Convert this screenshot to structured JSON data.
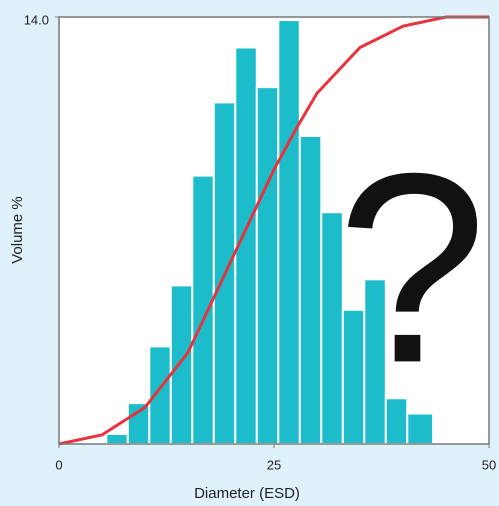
{
  "chart_data": {
    "type": "histogram",
    "xlabel": "Diameter (ESD)",
    "ylabel": "Volume %",
    "annotation": "?",
    "bins": [
      5.5,
      8,
      10.5,
      13,
      15.5,
      18,
      20.5,
      23,
      25.5,
      28,
      30.5,
      33,
      35.5,
      38,
      40.5,
      43.5
    ],
    "values": [
      0.33,
      1.34,
      3.2,
      5.2,
      8.8,
      11.2,
      13.0,
      11.7,
      13.9,
      10.1,
      7.6,
      4.4,
      5.4,
      1.5,
      1.0
    ],
    "color": "#1cbccb",
    "xlim": [
      0,
      50
    ],
    "ylim": [
      0,
      14
    ],
    "xticks": [
      0,
      25,
      50
    ],
    "yticks": [
      {
        "value": 14,
        "label": "14.0"
      }
    ],
    "curve": {
      "type": "line",
      "color": "#e8333c",
      "x": [
        0,
        5,
        10,
        15,
        20,
        22.5,
        25,
        27.5,
        30,
        35,
        40,
        45,
        50
      ],
      "values": [
        0,
        0.3,
        1.2,
        3.0,
        6.0,
        7.5,
        9.0,
        10.3,
        11.5,
        13.0,
        13.7,
        14,
        14
      ]
    }
  }
}
